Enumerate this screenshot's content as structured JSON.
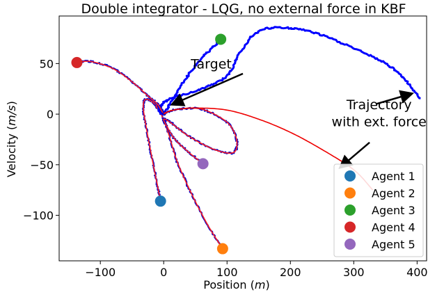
{
  "chart_data": {
    "type": "line",
    "title": "Double integrator - LQG, no external force in KBF",
    "xlabel_main": "Position",
    "xlabel_unit": "m",
    "ylabel_main": "Velocity",
    "ylabel_unit": "m/s",
    "xlim": [
      -165,
      415
    ],
    "ylim": [
      -145,
      97
    ],
    "xticks": [
      -100,
      0,
      100,
      200,
      300,
      400
    ],
    "yticks": [
      50,
      0,
      -50,
      -100
    ],
    "xtick_labels": [
      "−100",
      "0",
      "100",
      "200",
      "300",
      "400"
    ],
    "ytick_labels": [
      "50",
      "0",
      "−50",
      "−100"
    ],
    "grid": false,
    "legend_position": "lower-right",
    "agent_colors": [
      "#1f77b4",
      "#ff7f0e",
      "#2ca02c",
      "#d62728",
      "#9467bd"
    ],
    "agents": [
      {
        "name": "Agent 1",
        "color": "#1f77b4",
        "start": [
          -5,
          -86
        ]
      },
      {
        "name": "Agent 2",
        "color": "#ff7f0e",
        "start": [
          93,
          -133
        ]
      },
      {
        "name": "Agent 3",
        "color": "#2ca02c",
        "start": [
          90,
          74
        ]
      },
      {
        "name": "Agent 4",
        "color": "#d62728",
        "start": [
          -137,
          51
        ]
      },
      {
        "name": "Agent 5",
        "color": "#9467bd",
        "start": [
          62,
          -49
        ]
      }
    ],
    "series": [
      {
        "agent": "Agent 1",
        "color": "#ff2020",
        "noise": "#0000cc",
        "points": [
          [
            -5,
            -86
          ],
          [
            -10,
            -70
          ],
          [
            -18,
            -45
          ],
          [
            -27,
            -15
          ],
          [
            -32,
            5
          ],
          [
            -30,
            14
          ],
          [
            -20,
            13
          ],
          [
            -8,
            6
          ],
          [
            0,
            0
          ]
        ]
      },
      {
        "agent": "Agent 2",
        "color": "#ff2020",
        "noise": "#0000cc",
        "points": [
          [
            93,
            -133
          ],
          [
            70,
            -110
          ],
          [
            45,
            -80
          ],
          [
            22,
            -48
          ],
          [
            8,
            -20
          ],
          [
            -4,
            0
          ],
          [
            -12,
            8
          ],
          [
            -5,
            7
          ],
          [
            0,
            0
          ]
        ]
      },
      {
        "agent": "Agent 3",
        "color": "#0000ff",
        "noise": "#0000ff",
        "points": [
          [
            0,
            0
          ],
          [
            -8,
            5
          ],
          [
            10,
            15
          ],
          [
            60,
            25
          ],
          [
            100,
            38
          ],
          [
            120,
            60
          ],
          [
            150,
            82
          ],
          [
            200,
            85
          ],
          [
            250,
            78
          ],
          [
            300,
            65
          ],
          [
            350,
            50
          ],
          [
            380,
            35
          ],
          [
            405,
            15
          ]
        ]
      },
      {
        "agent": "Agent 3 (start)",
        "color": "#0000ff",
        "noise": "#0000ff",
        "points": [
          [
            90,
            74
          ],
          [
            60,
            55
          ],
          [
            35,
            35
          ],
          [
            15,
            15
          ],
          [
            0,
            0
          ]
        ]
      },
      {
        "agent": "Agent 4",
        "color": "#ff2020",
        "noise": "#0000cc",
        "points": [
          [
            -137,
            51
          ],
          [
            -115,
            52
          ],
          [
            -80,
            45
          ],
          [
            -50,
            32
          ],
          [
            -25,
            18
          ],
          [
            -10,
            10
          ],
          [
            -4,
            4
          ],
          [
            0,
            0
          ]
        ]
      },
      {
        "agent": "Agent 5",
        "color": "#ff2020",
        "noise": "#0000cc",
        "points": [
          [
            62,
            -49
          ],
          [
            40,
            -38
          ],
          [
            18,
            -25
          ],
          [
            5,
            -12
          ],
          [
            0,
            -5
          ],
          [
            10,
            -8
          ],
          [
            40,
            -22
          ],
          [
            80,
            -35
          ],
          [
            110,
            -38
          ],
          [
            115,
            -25
          ],
          [
            100,
            -8
          ],
          [
            60,
            5
          ],
          [
            25,
            5
          ],
          [
            5,
            2
          ],
          [
            0,
            0
          ]
        ]
      },
      {
        "agent": "ext-force",
        "color": "#ee0000",
        "noise": "none",
        "points": [
          [
            0,
            0
          ],
          [
            15,
            4
          ],
          [
            50,
            6
          ],
          [
            100,
            4
          ],
          [
            150,
            -5
          ],
          [
            200,
            -18
          ],
          [
            250,
            -35
          ],
          [
            300,
            -55
          ],
          [
            330,
            -75
          ]
        ]
      }
    ],
    "annotations": [
      {
        "text": "Target",
        "at": [
          75,
          45
        ]
      },
      {
        "text": "Trajectory",
        "at": [
          340,
          5
        ]
      },
      {
        "text": "with ext. force",
        "at": [
          340,
          -12
        ]
      }
    ],
    "arrows": [
      {
        "from": [
          125,
          40
        ],
        "to": [
          15,
          10
        ]
      },
      {
        "from": [
          335,
          10
        ],
        "to": [
          390,
          20
        ]
      },
      {
        "from": [
          325,
          -28
        ],
        "to": [
          280,
          -52
        ]
      }
    ]
  }
}
